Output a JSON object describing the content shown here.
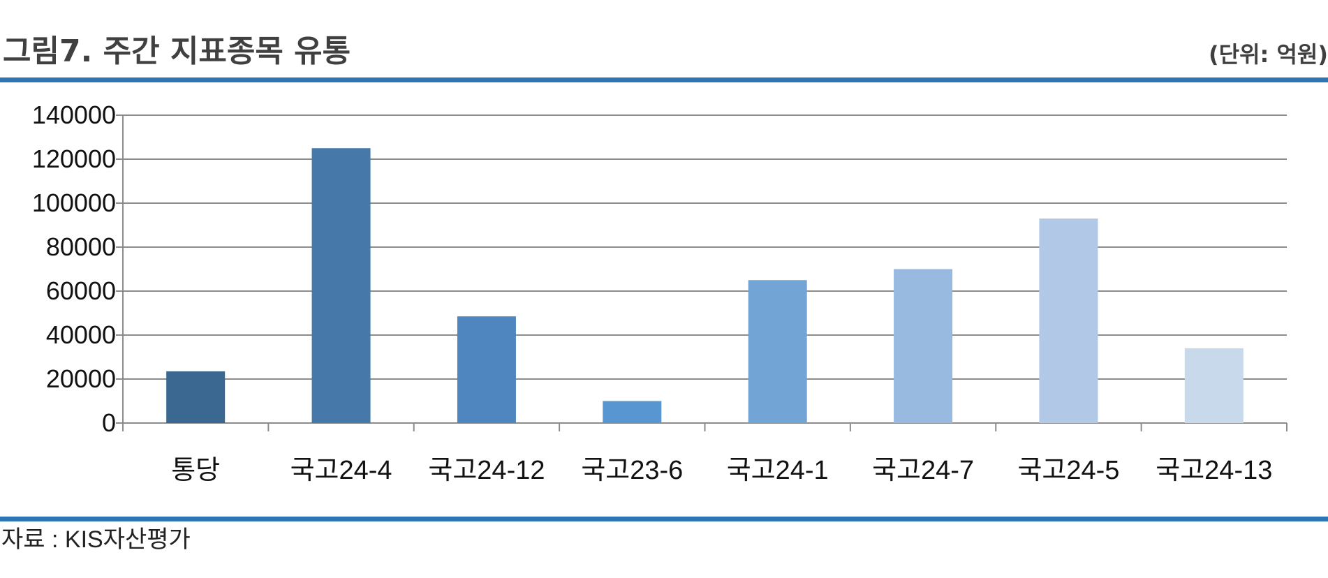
{
  "header": {
    "title": "그림7. 주간 지표종목 유통",
    "unit": "(단위: 억원)"
  },
  "footer": {
    "source": "자료 : KIS자산평가"
  },
  "colors": {
    "rule": "#2e75b6",
    "grid": "#8c8c8c",
    "bars": [
      "#3b6890",
      "#4679a9",
      "#4f86bf",
      "#5896d1",
      "#72a4d6",
      "#98b9e0",
      "#b1c9e7",
      "#c9d9ec"
    ]
  },
  "chart_data": {
    "type": "bar",
    "categories": [
      "통당",
      "국고24-4",
      "국고24-12",
      "국고23-6",
      "국고24-1",
      "국고24-7",
      "국고24-5",
      "국고24-13"
    ],
    "values": [
      23500,
      125000,
      48500,
      10000,
      65000,
      70000,
      93000,
      34000
    ],
    "ylim": [
      0,
      140000
    ],
    "yticks": [
      "0",
      "20000",
      "40000",
      "60000",
      "80000",
      "100000",
      "120000",
      "140000"
    ],
    "grid": true,
    "legend": "none"
  }
}
